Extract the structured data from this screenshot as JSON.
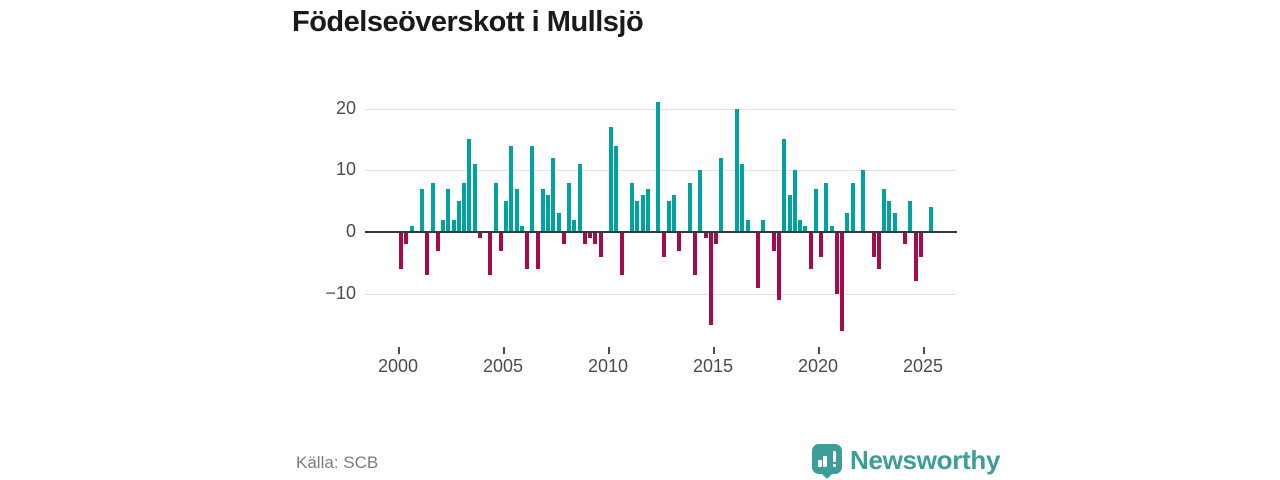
{
  "title": "Födelseöverskott i Mullsjö",
  "source": "Källa: SCB",
  "brand": {
    "name": "Newsworthy",
    "icon": "newsworthy-bars-badge"
  },
  "colors": {
    "positive": "#00a3a1",
    "negative": "#a60c4b",
    "brand": "#3d9e99",
    "title": "#1a1a1a",
    "axis_text": "#4c4c4c",
    "grid": "#e2e2e2",
    "zero_line": "#383838",
    "source_text": "#7c7c7c"
  },
  "chart_data": {
    "type": "bar",
    "title": "Födelseöverskott i Mullsjö",
    "frequency": "quarterly",
    "x_start": {
      "year": 2000,
      "quarter": 1
    },
    "values": [
      -6,
      -2,
      1,
      0,
      7,
      -7,
      8,
      -3,
      2,
      7,
      2,
      5,
      8,
      15,
      11,
      -1,
      0,
      -7,
      8,
      -3,
      5,
      14,
      7,
      1,
      -6,
      14,
      -6,
      7,
      6,
      12,
      3,
      -2,
      8,
      2,
      11,
      -2,
      -1,
      -2,
      -4,
      0,
      17,
      14,
      -7,
      0,
      8,
      5,
      6,
      7,
      0,
      21,
      -4,
      5,
      6,
      -3,
      0,
      8,
      -7,
      10,
      -1,
      -15,
      -2,
      12,
      0,
      0,
      20,
      11,
      2,
      0,
      -9,
      2,
      0,
      -3,
      -11,
      15,
      6,
      10,
      2,
      1,
      -6,
      7,
      -4,
      8,
      1,
      -10,
      -16,
      3,
      8,
      0,
      10,
      0,
      -4,
      -6,
      7,
      5,
      3,
      0,
      -2,
      5,
      -8,
      -4,
      0,
      4
    ],
    "yticks": [
      20,
      10,
      0,
      -10
    ],
    "xticks": [
      2000,
      2005,
      2010,
      2015,
      2020,
      2025
    ],
    "ylim": [
      -17,
      22
    ],
    "xlabel": "",
    "ylabel": "",
    "grid": "horizontal",
    "legend": "none"
  }
}
